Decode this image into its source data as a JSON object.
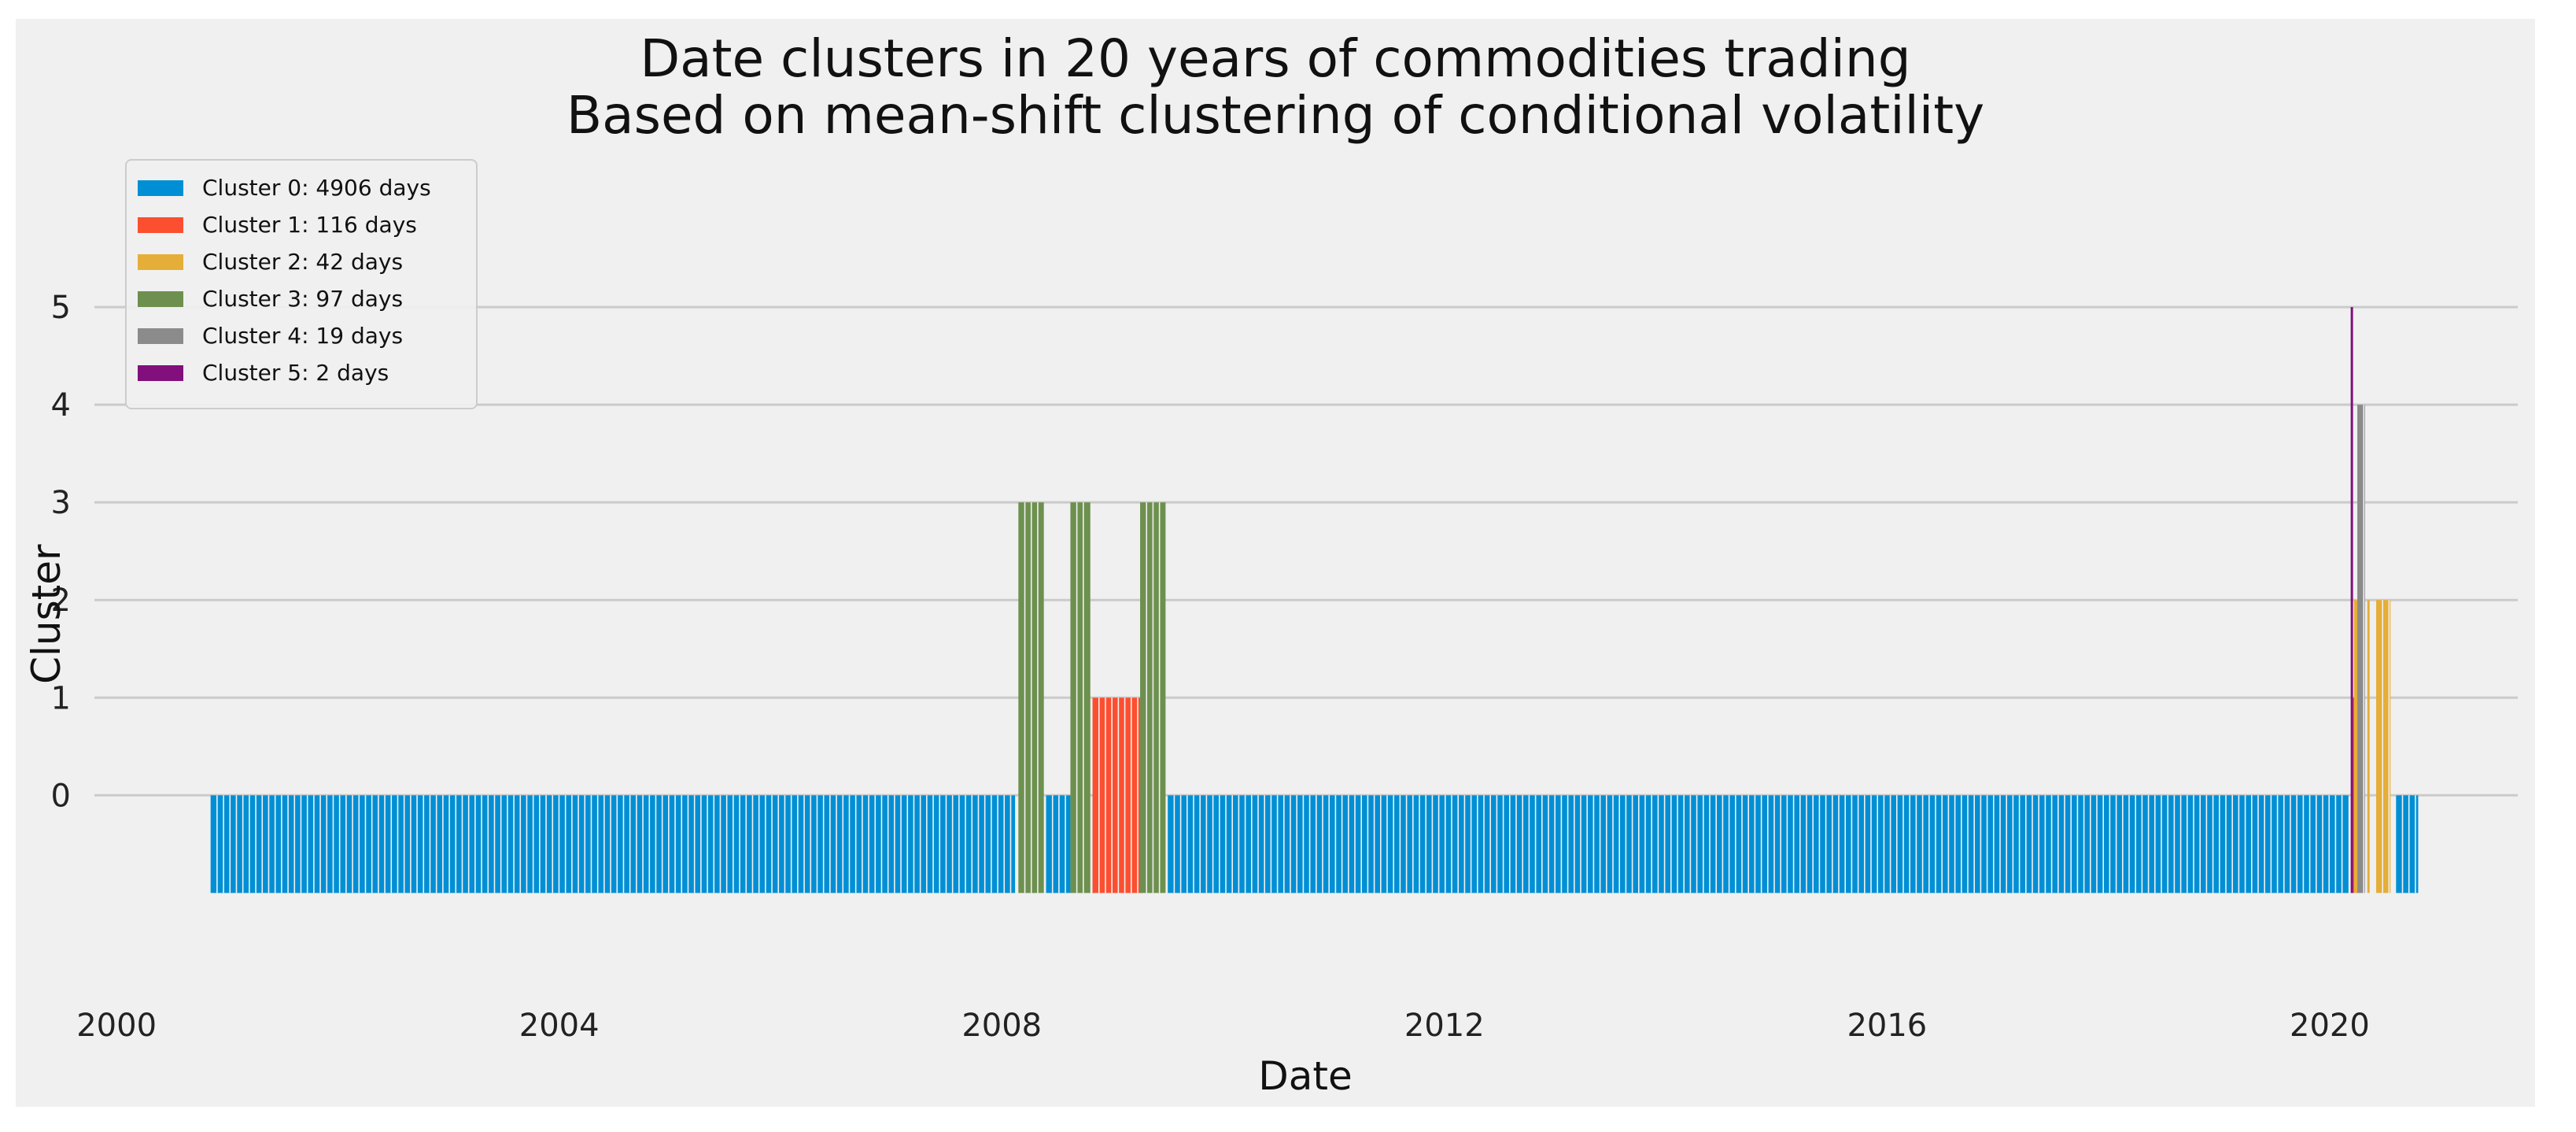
{
  "chart_data": {
    "type": "bar",
    "title": "Date clusters in 20 years of commodities trading",
    "subtitle": "Based on mean-shift clustering of conditional volatility",
    "xlabel": "Date",
    "ylabel": "Cluster",
    "xlim": [
      1999.8,
      2021.7
    ],
    "ylim": [
      -1.9,
      6.5
    ],
    "xticks": [
      2000,
      2004,
      2008,
      2012,
      2016,
      2020
    ],
    "xtick_labels": [
      "2000",
      "2004",
      "2008",
      "2012",
      "2016",
      "2020"
    ],
    "yticks": [
      0,
      1,
      2,
      3,
      4,
      5
    ],
    "ytick_labels": [
      "0",
      "1",
      "2",
      "3",
      "4",
      "5"
    ],
    "bar_bottom": -1,
    "grid": true,
    "legend_position": "upper-left",
    "legend": [
      {
        "label": "Cluster 0: 4906 days",
        "color": "#008fd5"
      },
      {
        "label": "Cluster 1: 116 days",
        "color": "#fc4f30"
      },
      {
        "label": "Cluster 2: 42 days",
        "color": "#e5ae38"
      },
      {
        "label": "Cluster 3: 97 days",
        "color": "#6d904f"
      },
      {
        "label": "Cluster 4: 19 days",
        "color": "#8b8b8b"
      },
      {
        "label": "Cluster 5: 2 days",
        "color": "#810f7c"
      }
    ],
    "series": [
      {
        "name": "Cluster 0",
        "cluster": 0,
        "color": "#008fd5",
        "ranges": [
          [
            2000.85,
            2008.12
          ],
          [
            2008.4,
            2008.62
          ],
          [
            2008.82,
            2008.83
          ],
          [
            2009.25,
            2009.26
          ],
          [
            2009.5,
            2020.17
          ],
          [
            2020.6,
            2020.8
          ]
        ]
      },
      {
        "name": "Cluster 1",
        "cluster": 1,
        "color": "#fc4f30",
        "ranges": [
          [
            2008.82,
            2009.25
          ],
          [
            2020.2,
            2020.22
          ]
        ]
      },
      {
        "name": "Cluster 2",
        "cluster": 2,
        "color": "#e5ae38",
        "ranges": [
          [
            2020.22,
            2020.26
          ],
          [
            2020.34,
            2020.35
          ],
          [
            2020.42,
            2020.55
          ]
        ]
      },
      {
        "name": "Cluster 3",
        "cluster": 3,
        "color": "#6d904f",
        "ranges": [
          [
            2008.15,
            2008.38
          ],
          [
            2008.62,
            2008.8
          ],
          [
            2009.25,
            2009.48
          ]
        ]
      },
      {
        "name": "Cluster 4",
        "cluster": 4,
        "color": "#8b8b8b",
        "ranges": [
          [
            2020.25,
            2020.32
          ]
        ]
      },
      {
        "name": "Cluster 5",
        "cluster": 5,
        "color": "#810f7c",
        "ranges": [
          [
            2020.19,
            2020.21
          ]
        ]
      }
    ]
  }
}
